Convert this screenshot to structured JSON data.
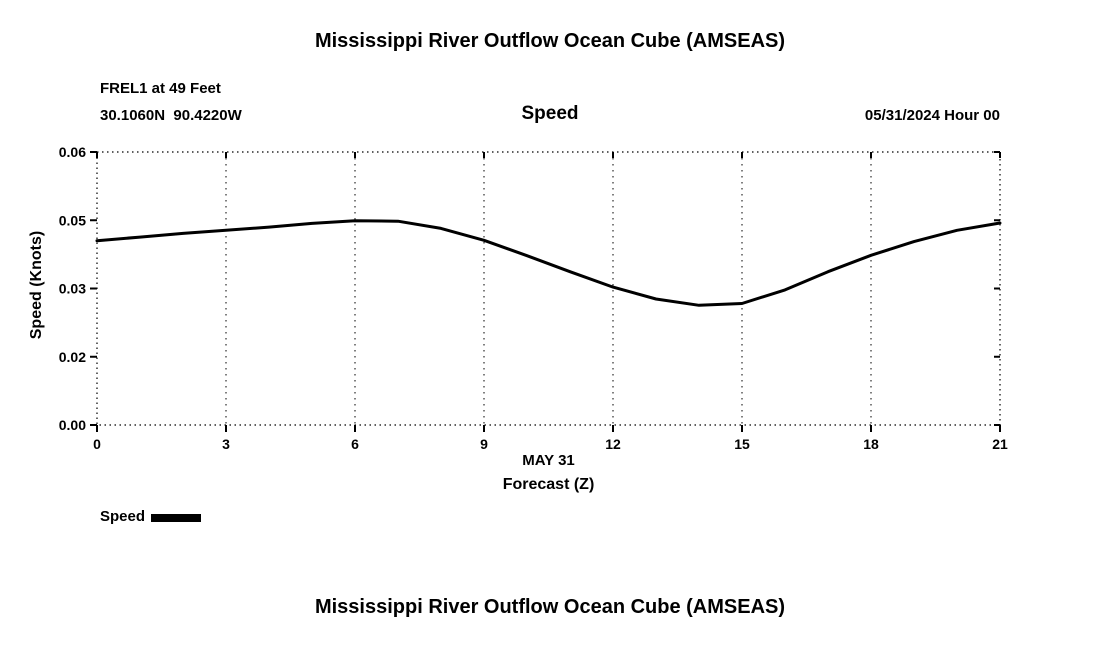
{
  "page": {
    "top_title": "Mississippi River Outflow Ocean Cube (AMSEAS)",
    "bottom_title": "Mississippi River Outflow Ocean Cube (AMSEAS)"
  },
  "subheader": {
    "station": "FREL1 at 49 Feet",
    "coordinates": "30.1060N  90.4220W",
    "plot_title": "Speed",
    "run_time": "05/31/2024 Hour 00"
  },
  "legend": {
    "label": "Speed",
    "color": "#000000"
  },
  "chart_data": {
    "type": "line",
    "title": "Speed",
    "ylabel": "Speed (Knots)",
    "xlabel": "Forecast (Z)",
    "x_axis_date": "MAY 31",
    "xlim": [
      0,
      21
    ],
    "ylim": [
      0,
      0.06
    ],
    "x_ticks": [
      0,
      3,
      6,
      9,
      12,
      15,
      18,
      21
    ],
    "y_ticks": [
      {
        "value": 0.0,
        "label": "0.00"
      },
      {
        "value": 0.015,
        "label": "0.02"
      },
      {
        "value": 0.03,
        "label": "0.03"
      },
      {
        "value": 0.045,
        "label": "0.05"
      },
      {
        "value": 0.06,
        "label": "0.06"
      }
    ],
    "grid": "dotted",
    "legend_position": "bottom-left",
    "series": [
      {
        "name": "Speed",
        "color": "#000000",
        "x": [
          0,
          1,
          2,
          3,
          4,
          5,
          6,
          7,
          8,
          9,
          10,
          11,
          12,
          13,
          14,
          15,
          16,
          17,
          18,
          19,
          20,
          21
        ],
        "values": [
          0.0405,
          0.0413,
          0.0421,
          0.0428,
          0.0435,
          0.0443,
          0.0449,
          0.0448,
          0.0432,
          0.0406,
          0.0372,
          0.0337,
          0.0303,
          0.0277,
          0.0263,
          0.0267,
          0.0297,
          0.0337,
          0.0373,
          0.0403,
          0.0428,
          0.0444
        ]
      }
    ]
  }
}
